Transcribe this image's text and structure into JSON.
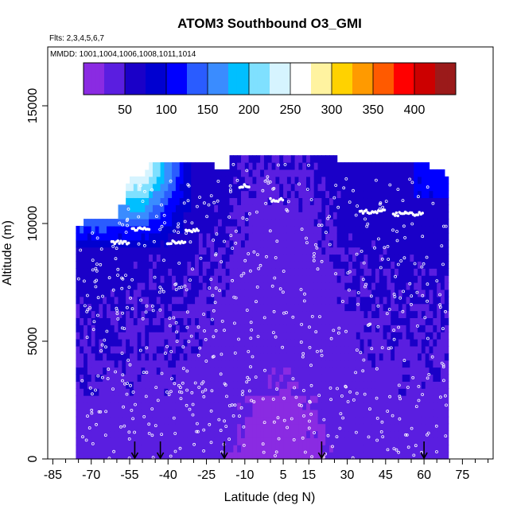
{
  "chart_data": {
    "type": "heatmap",
    "title": "ATOM3 Southbound O3_GMI",
    "subtitle_flights": "Flts: 2,3,4,5,6,7",
    "subtitle_dates": "MMDD: 1001,1004,1006,1008,1011,1014",
    "xlabel": "Latitude (deg N)",
    "ylabel": "Altitude (m)",
    "xlim": [
      -87,
      87
    ],
    "ylim": [
      0,
      17500
    ],
    "x_ticks": [
      -85,
      -70,
      -55,
      -40,
      -25,
      -10,
      5,
      15,
      30,
      45,
      60,
      75
    ],
    "x_tick_labels": [
      "-85",
      "-70",
      "-55",
      "-40",
      "-25",
      "-10",
      "5",
      "15",
      "30",
      "45",
      "60",
      "75"
    ],
    "x_minor_ticks": [
      -80,
      -75,
      -65,
      -60,
      -50,
      -45,
      -35,
      -30,
      -20,
      -15,
      -5,
      0,
      10,
      20,
      25,
      35,
      40,
      50,
      55,
      65,
      70,
      80,
      85
    ],
    "y_ticks": [
      0,
      5000,
      10000,
      15000
    ],
    "y_tick_labels": [
      "0",
      "5000",
      "10000",
      "15000"
    ],
    "colorbar": {
      "min": 0,
      "max": 450,
      "ticks": [
        50,
        100,
        150,
        200,
        250,
        300,
        350,
        400
      ],
      "tick_labels": [
        "50",
        "100",
        "150",
        "200",
        "250",
        "300",
        "350",
        "400"
      ],
      "colors": [
        "#8a2be2",
        "#5a1ee0",
        "#1a00c8",
        "#0000d0",
        "#0000ff",
        "#2a5cff",
        "#3a8cff",
        "#00bfff",
        "#7fe0ff",
        "#d6f4ff",
        "#ffffff",
        "#fff3a0",
        "#ffd200",
        "#ff9a00",
        "#ff5a00",
        "#ff0000",
        "#cc0000",
        "#9b1a1a"
      ]
    },
    "arrow_latitudes": [
      -53,
      -43,
      -18,
      20,
      60
    ],
    "grid": false,
    "legend": "colorbar-top-inside"
  }
}
